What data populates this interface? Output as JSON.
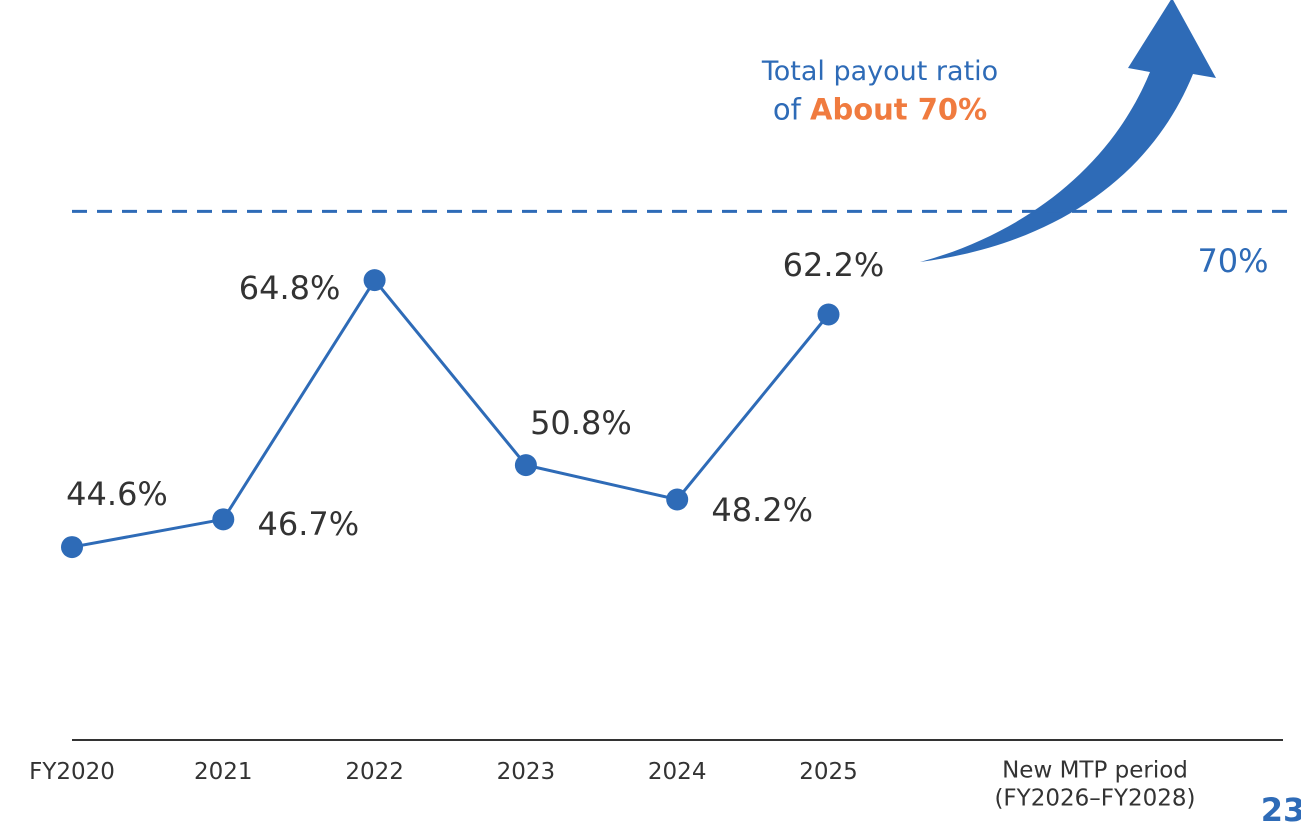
{
  "chart_data": {
    "type": "line",
    "categories": [
      "FY2020",
      "2021",
      "2022",
      "2023",
      "2024",
      "2025",
      "New MTP period\n(FY2026–FY2028)"
    ],
    "series": [
      {
        "color": "#2e6bb7",
        "values": [
          44.6,
          46.7,
          64.8,
          50.8,
          48.2,
          62.2,
          null
        ],
        "value_labels": [
          "44.6%",
          "46.7%",
          "64.8%",
          "50.8%",
          "48.2%",
          "62.2%",
          null
        ]
      }
    ],
    "ylim": [
      30,
      86
    ],
    "reference_line": {
      "value": 70,
      "label": "70%",
      "color": "#2e6bb7"
    },
    "annotation": {
      "line1": "Total payout ratio",
      "prefix": "of",
      "emphasis": "About 70%",
      "emphasis_color": "#f07b3f"
    },
    "page_number": "23"
  }
}
